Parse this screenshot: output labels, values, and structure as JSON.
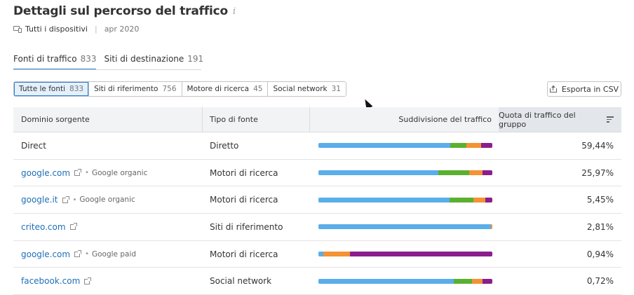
{
  "header": {
    "title": "Dettagli sul percorso del traffico",
    "info_icon": "info-icon",
    "device_label": "Tutti i dispositivi",
    "separator": "|",
    "date": "apr 2020"
  },
  "tabs": [
    {
      "label": "Fonti di traffico",
      "count": "833"
    },
    {
      "label": "Siti di destinazione",
      "count": "191"
    }
  ],
  "filters": [
    {
      "label": "Tutte le fonti",
      "count": "833"
    },
    {
      "label": "Siti di riferimento",
      "count": "756"
    },
    {
      "label": "Motore di ricerca",
      "count": "45"
    },
    {
      "label": "Social network",
      "count": "31"
    }
  ],
  "export_label": "Esporta in CSV",
  "colors": {
    "direct": "#5aaeea",
    "referral": "#5cb030",
    "search": "#f39334",
    "social": "#8a1e8c"
  },
  "table": {
    "columns": [
      "Dominio sorgente",
      "Tipo di fonte",
      "Suddivisione del traffico",
      "Quota di traffico del gruppo"
    ],
    "rows": [
      {
        "domain": "Direct",
        "link": false,
        "subtype": "",
        "type": "Diretto",
        "share": "59,44%",
        "breakdown": [
          76,
          9,
          8.5,
          6.5
        ]
      },
      {
        "domain": "google.com",
        "link": true,
        "subtype": "Google organic",
        "type": "Motori di ricerca",
        "share": "25,97%",
        "breakdown": [
          69,
          17.5,
          8,
          5.5
        ]
      },
      {
        "domain": "google.it",
        "link": true,
        "subtype": "Google organic",
        "type": "Motori di ricerca",
        "share": "5,45%",
        "breakdown": [
          75.5,
          13.5,
          7,
          4
        ]
      },
      {
        "domain": "criteo.com",
        "link": true,
        "subtype": "",
        "type": "Siti di riferimento",
        "share": "2,81%",
        "breakdown": [
          99,
          0,
          1,
          0
        ]
      },
      {
        "domain": "google.com",
        "link": true,
        "subtype": "Google paid",
        "type": "Motori di ricerca",
        "share": "0,94%",
        "breakdown": [
          3,
          0,
          15,
          82
        ]
      },
      {
        "domain": "facebook.com",
        "link": true,
        "subtype": "",
        "type": "Social network",
        "share": "0,72%",
        "breakdown": [
          78,
          10.5,
          6,
          5.5
        ]
      }
    ]
  }
}
